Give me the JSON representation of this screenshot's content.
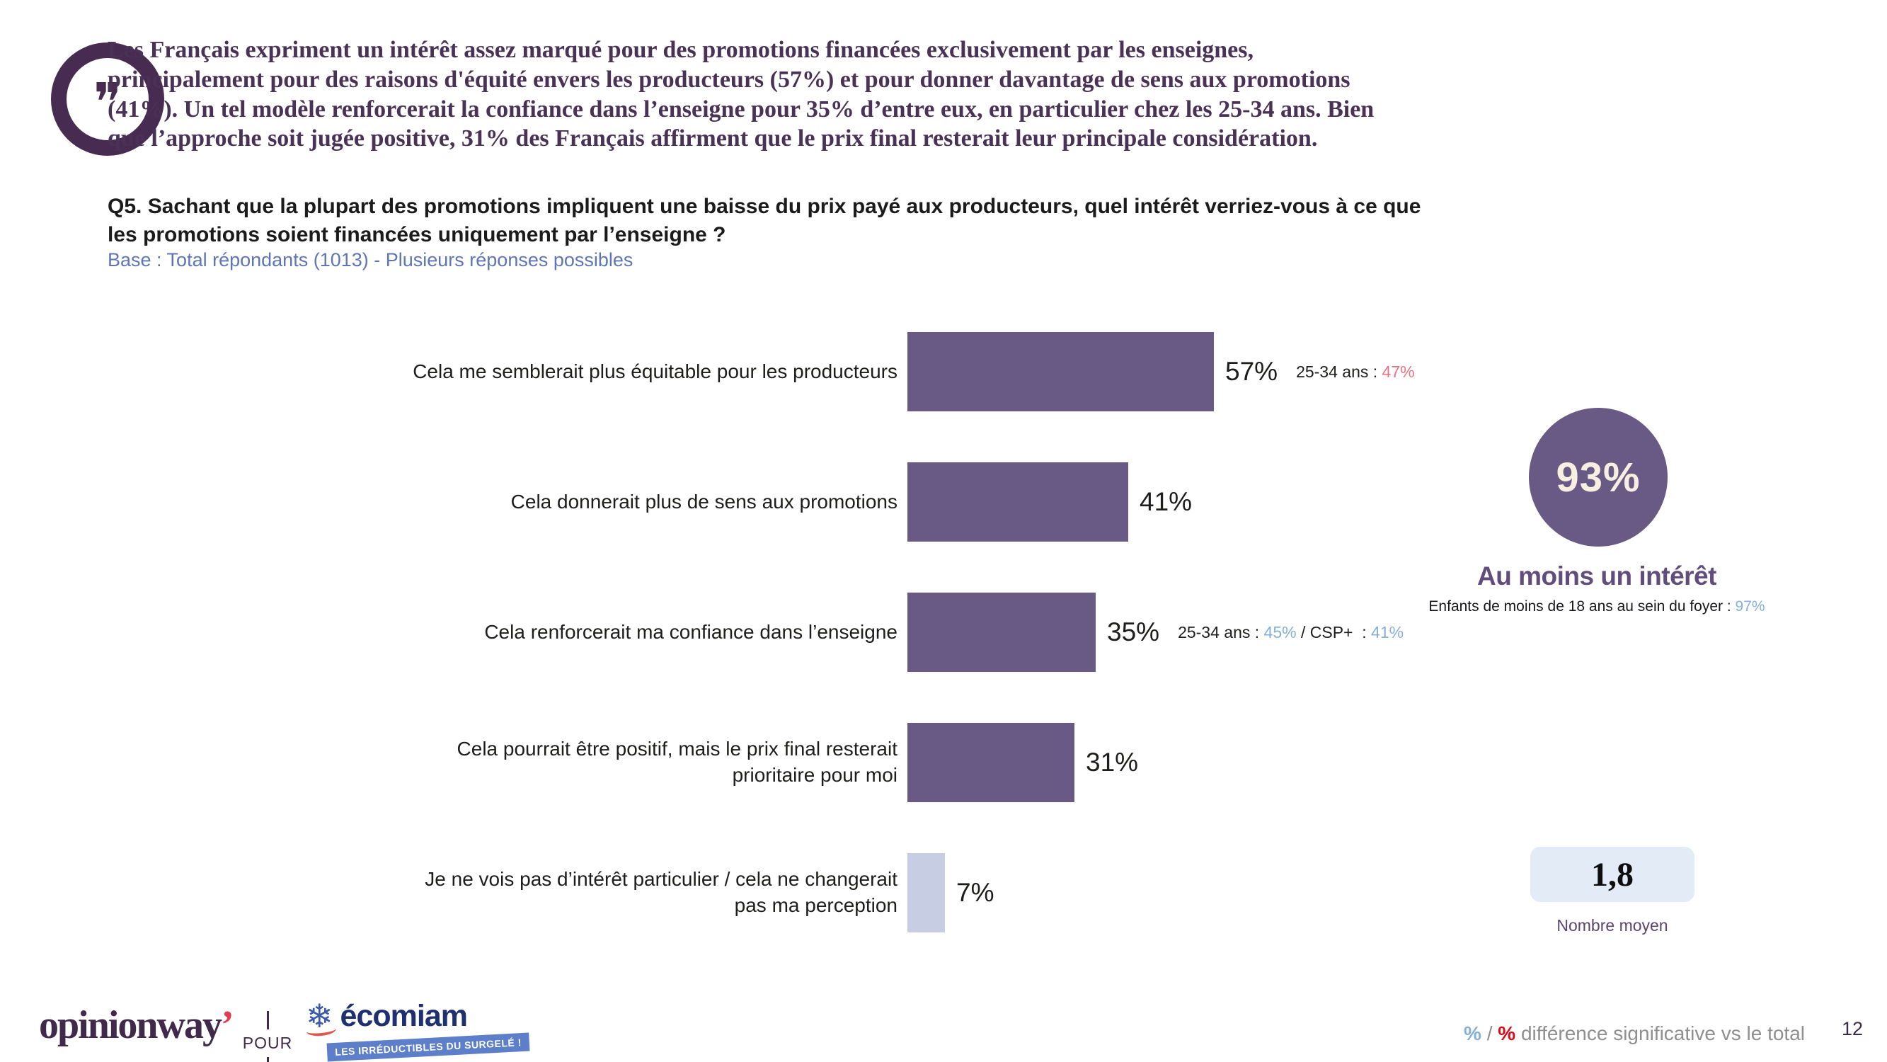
{
  "quote": {
    "text": "Les Français expriment un intérêt assez marqué pour des promotions financées exclusivement par les enseignes,\nprincipalement pour des raisons d'équité envers les producteurs (57%) et pour donner davantage de sens aux promotions\n(41%). Un tel modèle renforcerait la confiance dans l’enseigne pour 35% d’entre eux, en particulier chez les 25-34 ans. Bien\nque l’approche soit jugée positive, 31% des Français affirment que le prix final resterait leur principale considération."
  },
  "question": {
    "label": "Q5. Sachant que la plupart des promotions impliquent une baisse du prix payé aux producteurs, quel intérêt verriez-vous à ce que\nles promotions soient financées uniquement par l’enseigne ?",
    "base": "Base : Total répondants (1013) - Plusieurs réponses possibles"
  },
  "chart_data": {
    "type": "bar",
    "orientation": "horizontal",
    "title": "",
    "categories": [
      "Cela me semblerait plus équitable pour les producteurs",
      "Cela donnerait plus de sens aux promotions",
      "Cela renforcerait ma confiance dans l’enseigne",
      "Cela pourrait être positif, mais le prix final resterait\nprioritaire pour moi",
      "Je ne vois pas d’intérêt particulier / cela ne changerait\npas ma perception"
    ],
    "values": [
      57,
      41,
      35,
      31,
      7
    ],
    "value_labels": [
      "57%",
      "41%",
      "35%",
      "31%",
      "7%"
    ],
    "bar_colors": [
      "#695A85",
      "#695A85",
      "#695A85",
      "#695A85",
      "#C7CDE3"
    ],
    "xlim": [
      0,
      60
    ],
    "grid": false,
    "legend": "none",
    "annotations": [
      [
        {
          "t": "25-34 ans : ",
          "c": "dark"
        },
        {
          "t": "47%",
          "c": "red"
        }
      ],
      [],
      [
        {
          "t": "25-34 ans : ",
          "c": "dark"
        },
        {
          "t": "45%",
          "c": "blue"
        },
        {
          "t": " / CSP+  : ",
          "c": "dark"
        },
        {
          "t": "41%",
          "c": "blue"
        }
      ],
      [],
      []
    ]
  },
  "highlight": {
    "value": "93%",
    "title": "Au moins un intérêt",
    "note_label": "Enfants de moins de 18 ans au sein du foyer : ",
    "note_value": "97%"
  },
  "average": {
    "value": "1,8",
    "label": "Nombre moyen"
  },
  "footer": {
    "brand": "opinionway",
    "brand_mark": "’",
    "pour": "POUR",
    "ecomiam_name": "écomiam",
    "ecomiam_tagline": "LES IRRÉDUCTIBLES DU SURGELÉ !",
    "legend_pct_blue": "%",
    "legend_sep": " / ",
    "legend_pct_red": "%",
    "legend_text": " différence significative vs le total",
    "page": "12"
  },
  "colors": {
    "dark": "#1D1D1B",
    "red": "#EE7183",
    "blue": "#85AFDB",
    "bar_purple": "#695A85",
    "bar_light": "#C7CDE3",
    "headline_purple": "#4A3156",
    "accent_red_legend": "#E30613",
    "base_blue": "#5E76B7"
  }
}
